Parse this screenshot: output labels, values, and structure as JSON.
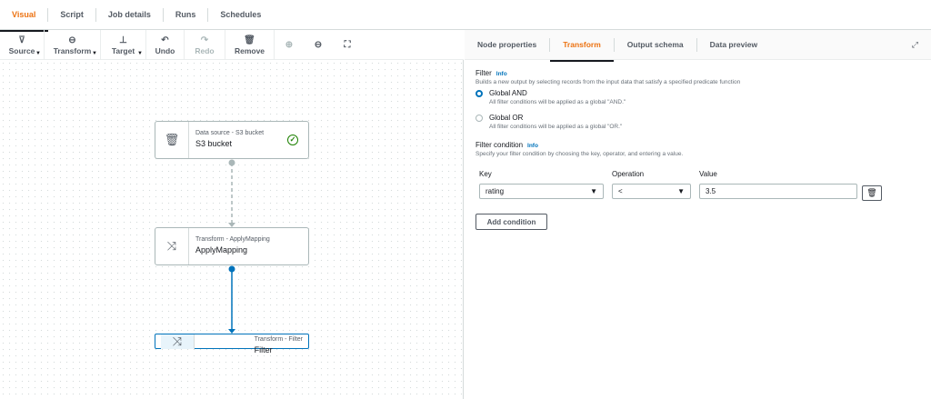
{
  "top_tabs": [
    {
      "label": "Visual",
      "active": true
    },
    {
      "label": "Script"
    },
    {
      "label": "Job details"
    },
    {
      "label": "Runs"
    },
    {
      "label": "Schedules"
    }
  ],
  "toolbar": {
    "source": "Source",
    "transform": "Transform",
    "target": "Target",
    "undo": "Undo",
    "redo": "Redo",
    "remove": "Remove"
  },
  "nodes": [
    {
      "type": "Data source - S3 bucket",
      "name": "S3 bucket",
      "icon": "bucket-icon",
      "status": "success"
    },
    {
      "type": "Transform - ApplyMapping",
      "name": "ApplyMapping",
      "icon": "shuffle-icon"
    },
    {
      "type": "Transform - Filter",
      "name": "Filter",
      "icon": "shuffle-icon",
      "selected": true
    }
  ],
  "panel": {
    "tabs": [
      "Node properties",
      "Transform",
      "Output schema",
      "Data preview"
    ],
    "active_tab": "Transform",
    "filter": {
      "label": "Filter",
      "info": "Info",
      "description": "Builds a new output by selecting records from the input data that satisfy a specified predicate function",
      "options": [
        {
          "label": "Global AND",
          "description": "All filter conditions will be applied as a global \"AND.\"",
          "selected": true
        },
        {
          "label": "Global OR",
          "description": "All filter conditions will be applied as a global \"OR.\"",
          "selected": false
        }
      ]
    },
    "condition": {
      "label": "Filter condition",
      "info": "Info",
      "description": "Specify your filter condition by choosing the key, operator, and entering a value.",
      "key_label": "Key",
      "operation_label": "Operation",
      "value_label": "Value",
      "key": "rating",
      "operation": "<",
      "value": "3.5",
      "add_label": "Add condition"
    }
  },
  "colors": {
    "accent": "#ec7211",
    "link": "#0073bb",
    "success": "#1d8102"
  }
}
